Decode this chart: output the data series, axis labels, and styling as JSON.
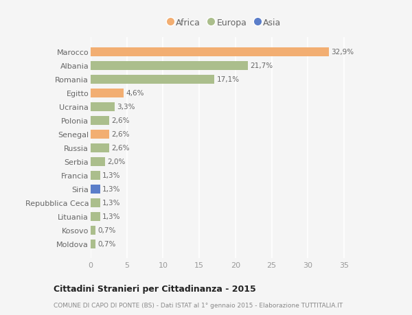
{
  "countries": [
    "Moldova",
    "Kosovo",
    "Lituania",
    "Repubblica Ceca",
    "Siria",
    "Francia",
    "Serbia",
    "Russia",
    "Senegal",
    "Polonia",
    "Ucraina",
    "Egitto",
    "Romania",
    "Albania",
    "Marocco"
  ],
  "values": [
    0.7,
    0.7,
    1.3,
    1.3,
    1.3,
    1.3,
    2.0,
    2.6,
    2.6,
    2.6,
    3.3,
    4.6,
    17.1,
    21.7,
    32.9
  ],
  "labels": [
    "0,7%",
    "0,7%",
    "1,3%",
    "1,3%",
    "1,3%",
    "1,3%",
    "2,0%",
    "2,6%",
    "2,6%",
    "2,6%",
    "3,3%",
    "4,6%",
    "17,1%",
    "21,7%",
    "32,9%"
  ],
  "continents": [
    "Europa",
    "Europa",
    "Europa",
    "Europa",
    "Asia",
    "Europa",
    "Europa",
    "Europa",
    "Africa",
    "Europa",
    "Europa",
    "Africa",
    "Europa",
    "Europa",
    "Africa"
  ],
  "color_Africa": "#F2AE72",
  "color_Europa": "#ABBE8C",
  "color_Asia": "#5B7EC9",
  "bg_color": "#F5F5F5",
  "grid_color": "#FFFFFF",
  "title": "Cittadini Stranieri per Cittadinanza - 2015",
  "subtitle": "COMUNE DI CAPO DI PONTE (BS) - Dati ISTAT al 1° gennaio 2015 - Elaborazione TUTTITALIA.IT",
  "xlim": [
    0,
    37
  ],
  "xticks": [
    0,
    5,
    10,
    15,
    20,
    25,
    30,
    35
  ]
}
